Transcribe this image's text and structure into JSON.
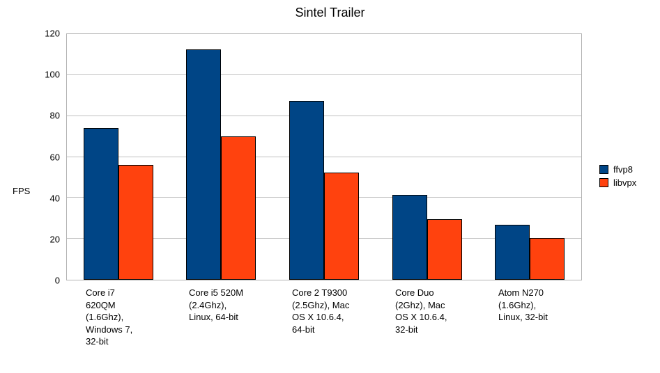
{
  "chart_data": {
    "type": "bar",
    "title": "Sintel Trailer",
    "xlabel": "",
    "ylabel": "FPS",
    "ylim": [
      0,
      120
    ],
    "ytick_step": 20,
    "yticks": [
      0,
      20,
      40,
      60,
      80,
      100,
      120
    ],
    "grid": true,
    "legend_position": "right",
    "categories": [
      "Core i7\n620QM\n(1.6Ghz),\nWindows 7,\n32-bit",
      "Core i5 520M\n(2.4Ghz),\nLinux, 64-bit",
      "Core 2 T9300\n(2.5Ghz), Mac\nOS X 10.6.4,\n64-bit",
      "Core Duo\n(2Ghz), Mac\nOS X 10.6.4,\n32-bit",
      "Atom N270\n(1.6Ghz),\nLinux, 32-bit"
    ],
    "series": [
      {
        "name": "ffvp8",
        "color": "#004586",
        "values": [
          74,
          112.5,
          87.5,
          41.5,
          27
        ]
      },
      {
        "name": "libvpx",
        "color": "#FF420E",
        "values": [
          56,
          70,
          52.5,
          29.5,
          20.5
        ]
      }
    ],
    "colors": {
      "gridline": "#c0c0c0",
      "plot_border": "#b3b3b3",
      "background": "#ffffff",
      "text": "#000000"
    }
  }
}
